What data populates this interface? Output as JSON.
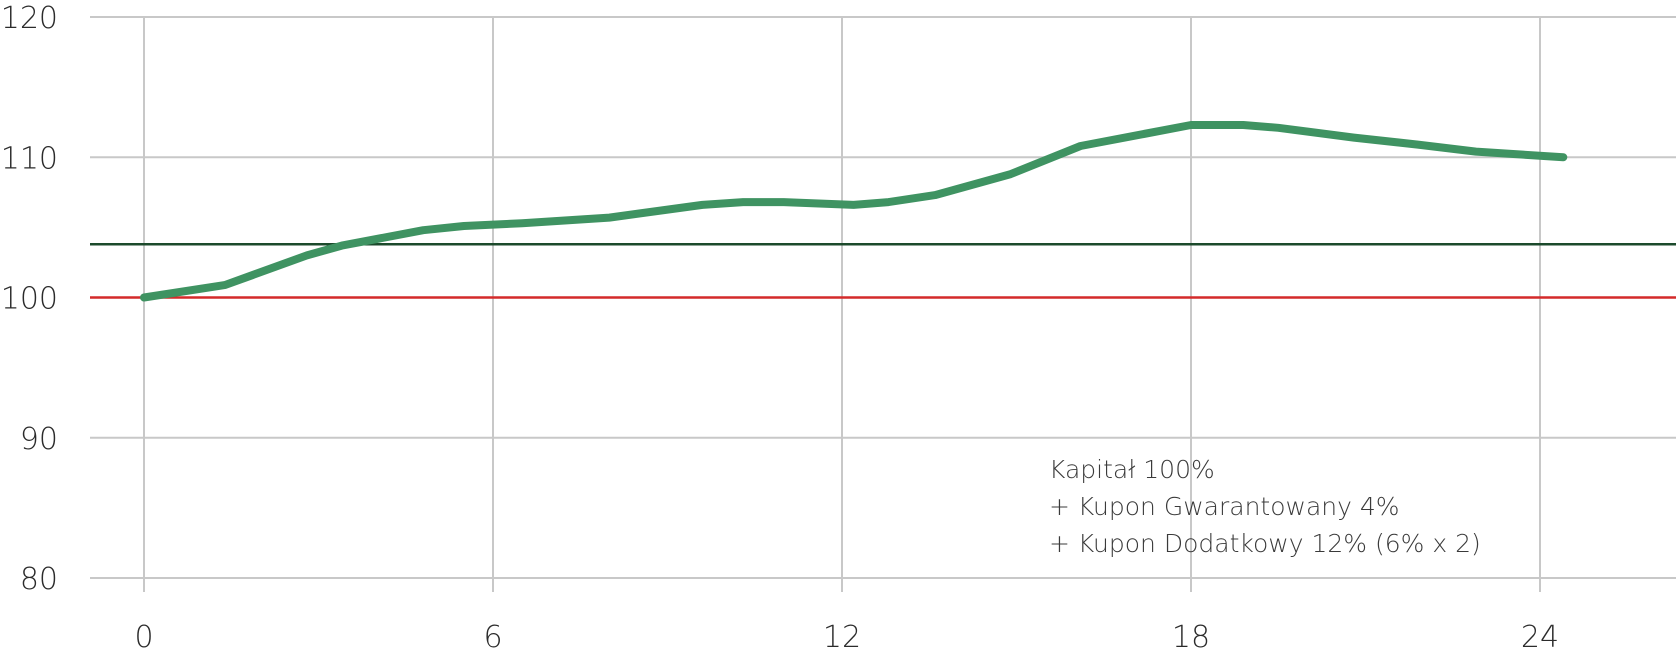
{
  "chart_data": {
    "type": "line",
    "title": "",
    "xlabel": "",
    "ylabel": "",
    "xlim": [
      -1,
      28
    ],
    "ylim": [
      80,
      120
    ],
    "x_ticks": [
      0,
      6,
      12,
      18,
      24
    ],
    "y_ticks": [
      80,
      90,
      100,
      110,
      120
    ],
    "grid": true,
    "series": [
      {
        "color": "#3f9362",
        "x": [
          0,
          1.4,
          2.8,
          3.4,
          4.8,
          5.5,
          6.5,
          8.0,
          9.6,
          10.3,
          11.0,
          12.2,
          12.8,
          13.6,
          14.9,
          16.1,
          18.0,
          18.9,
          19.5,
          20.8,
          21.9,
          22.9,
          24.4
        ],
        "y": [
          100.0,
          100.9,
          103.0,
          103.7,
          104.8,
          105.1,
          105.3,
          105.7,
          106.6,
          106.8,
          106.8,
          106.6,
          106.8,
          107.3,
          108.8,
          110.8,
          112.3,
          112.3,
          112.1,
          111.4,
          110.9,
          110.4,
          110.0
        ]
      }
    ],
    "reference_lines": [
      {
        "y": 100,
        "color": "#d42a2a"
      },
      {
        "y": 103.8,
        "color": "#1c4a2c"
      }
    ],
    "annotations": [
      "Kapitał 100%",
      "+ Kupon Gwarantowany 4%",
      "+ Kupon Dodatkowy 12% (6% x 2)"
    ],
    "colors": {
      "grid": "#c8c8c8",
      "axis_text": "#2b2b2b"
    }
  }
}
